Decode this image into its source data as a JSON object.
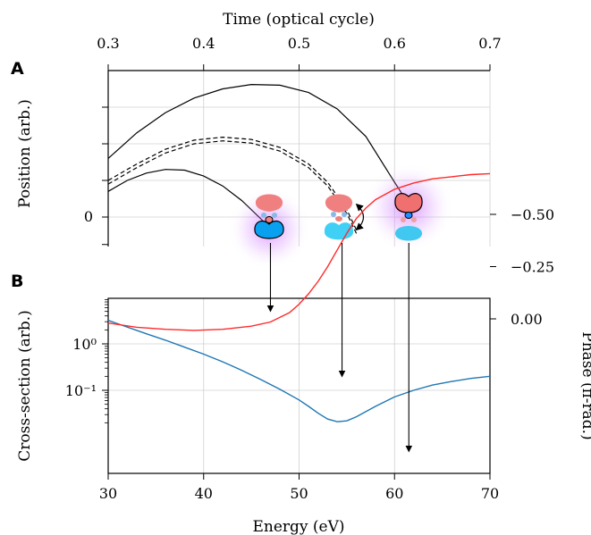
{
  "panels": {
    "a_letter": "A",
    "b_letter": "B"
  },
  "colors": {
    "trajectory": "#000000",
    "grid": "#d0d0d0",
    "cross_section": "#1f77b4",
    "phase": "#ff2a2a",
    "lobe_top": "#f08080",
    "lobe_bottom": "#1eb4f0",
    "glow": "#c040ff"
  },
  "orbital_icons": [
    "orbital-lobes-icon",
    "orbital-lobes-icon",
    "orbital-lobes-icon"
  ],
  "chart_data": [
    {
      "panel": "A",
      "type": "line",
      "xlabel": "Time (optical cycle)",
      "ylabel": "Position (arb.)",
      "x_axis_position": "top",
      "xlim": [
        0.3,
        0.7
      ],
      "x_ticks": [
        "0.3",
        "0.4",
        "0.5",
        "0.6",
        "0.7"
      ],
      "y_ticks": [
        "0"
      ],
      "grid": true,
      "series": [
        {
          "style": "solid",
          "x": [
            0.3,
            0.33,
            0.36,
            0.39,
            0.42,
            0.45,
            0.48,
            0.51,
            0.54,
            0.57,
            0.6,
            0.61
          ],
          "y": [
            1.6,
            2.3,
            2.85,
            3.25,
            3.5,
            3.62,
            3.6,
            3.4,
            2.95,
            2.2,
            0.95,
            0.55
          ]
        },
        {
          "style": "dashed",
          "x": [
            0.3,
            0.33,
            0.36,
            0.39,
            0.42,
            0.45,
            0.48,
            0.51,
            0.53,
            0.55,
            0.56
          ],
          "y": [
            1.0,
            1.45,
            1.85,
            2.1,
            2.18,
            2.12,
            1.9,
            1.45,
            0.95,
            0.2,
            -0.35
          ]
        },
        {
          "style": "dashed",
          "x": [
            0.3,
            0.33,
            0.36,
            0.39,
            0.42,
            0.45,
            0.48,
            0.51,
            0.53,
            0.55,
            0.56
          ],
          "y": [
            0.9,
            1.35,
            1.75,
            2.0,
            2.08,
            2.02,
            1.8,
            1.35,
            0.85,
            0.1,
            -0.45
          ]
        },
        {
          "style": "solid",
          "x": [
            0.3,
            0.32,
            0.34,
            0.36,
            0.38,
            0.4,
            0.42,
            0.44,
            0.46,
            0.47
          ],
          "y": [
            0.7,
            1.0,
            1.2,
            1.3,
            1.28,
            1.12,
            0.85,
            0.45,
            -0.05,
            -0.3
          ]
        }
      ]
    },
    {
      "panel": "B",
      "type": "line",
      "xlabel": "Energy (eV)",
      "ylabel": "Cross-section (arb.)",
      "ylabel_right": "Phase (π-rad.)",
      "xlim": [
        30,
        70
      ],
      "x_ticks": [
        "30",
        "40",
        "50",
        "60",
        "70"
      ],
      "y_ticks_left": [
        "10⁻¹",
        "10⁰"
      ],
      "y_ticks_right": [
        "0.00",
        "−0.25",
        "−0.50"
      ],
      "yscale_left": "log",
      "grid": true,
      "series": [
        {
          "axis": "left",
          "x": [
            30,
            32,
            34,
            36,
            38,
            40,
            42,
            44,
            46,
            48,
            50,
            51,
            52,
            53,
            54,
            55,
            56,
            58,
            60,
            62,
            64,
            66,
            68,
            70
          ],
          "y": [
            3.2,
            2.3,
            1.65,
            1.2,
            0.85,
            0.6,
            0.41,
            0.27,
            0.17,
            0.105,
            0.062,
            0.045,
            0.032,
            0.024,
            0.021,
            0.022,
            0.027,
            0.045,
            0.072,
            0.1,
            0.13,
            0.155,
            0.18,
            0.2
          ]
        },
        {
          "axis": "right",
          "x": [
            30,
            33,
            36,
            39,
            42,
            45,
            47,
            49,
            50,
            51,
            52,
            53,
            54,
            55,
            56,
            57,
            58,
            60,
            62,
            64,
            66,
            68,
            70
          ],
          "y": [
            0.02,
            0.04,
            0.05,
            0.055,
            0.05,
            0.035,
            0.015,
            -0.03,
            -0.07,
            -0.12,
            -0.18,
            -0.25,
            -0.33,
            -0.41,
            -0.48,
            -0.53,
            -0.57,
            -0.62,
            -0.65,
            -0.67,
            -0.68,
            -0.69,
            -0.695
          ]
        }
      ],
      "markers_energy_ev": [
        47,
        54.5,
        61.5
      ]
    }
  ]
}
